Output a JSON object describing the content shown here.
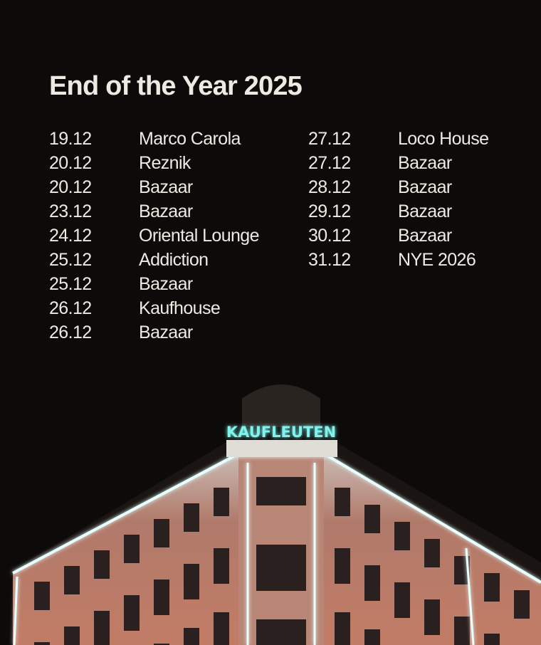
{
  "poster": {
    "title": "End of the Year 2025",
    "events_left": [
      {
        "date": "19.12",
        "name": "Marco Carola"
      },
      {
        "date": "20.12",
        "name": "Reznik"
      },
      {
        "date": "20.12",
        "name": "Bazaar"
      },
      {
        "date": "23.12",
        "name": "Bazaar"
      },
      {
        "date": "24.12",
        "name": "Oriental Lounge"
      },
      {
        "date": "25.12",
        "name": "Addiction"
      },
      {
        "date": "25.12",
        "name": "Bazaar"
      },
      {
        "date": "26.12",
        "name": "Kaufhouse"
      },
      {
        "date": "26.12",
        "name": "Bazaar"
      }
    ],
    "events_right": [
      {
        "date": "27.12",
        "name": "Loco House"
      },
      {
        "date": "27.12",
        "name": "Bazaar"
      },
      {
        "date": "28.12",
        "name": "Bazaar"
      },
      {
        "date": "29.12",
        "name": "Bazaar"
      },
      {
        "date": "30.12",
        "name": "Bazaar"
      },
      {
        "date": "31.12",
        "name": "NYE 2026"
      }
    ]
  },
  "photo": {
    "sign_text": "KAUFLEUTEN",
    "sign_color": "#7ff3ec",
    "facade_color": "#a8705f",
    "background_color": "#0d0b0a",
    "text_color": "#ecebe2"
  }
}
